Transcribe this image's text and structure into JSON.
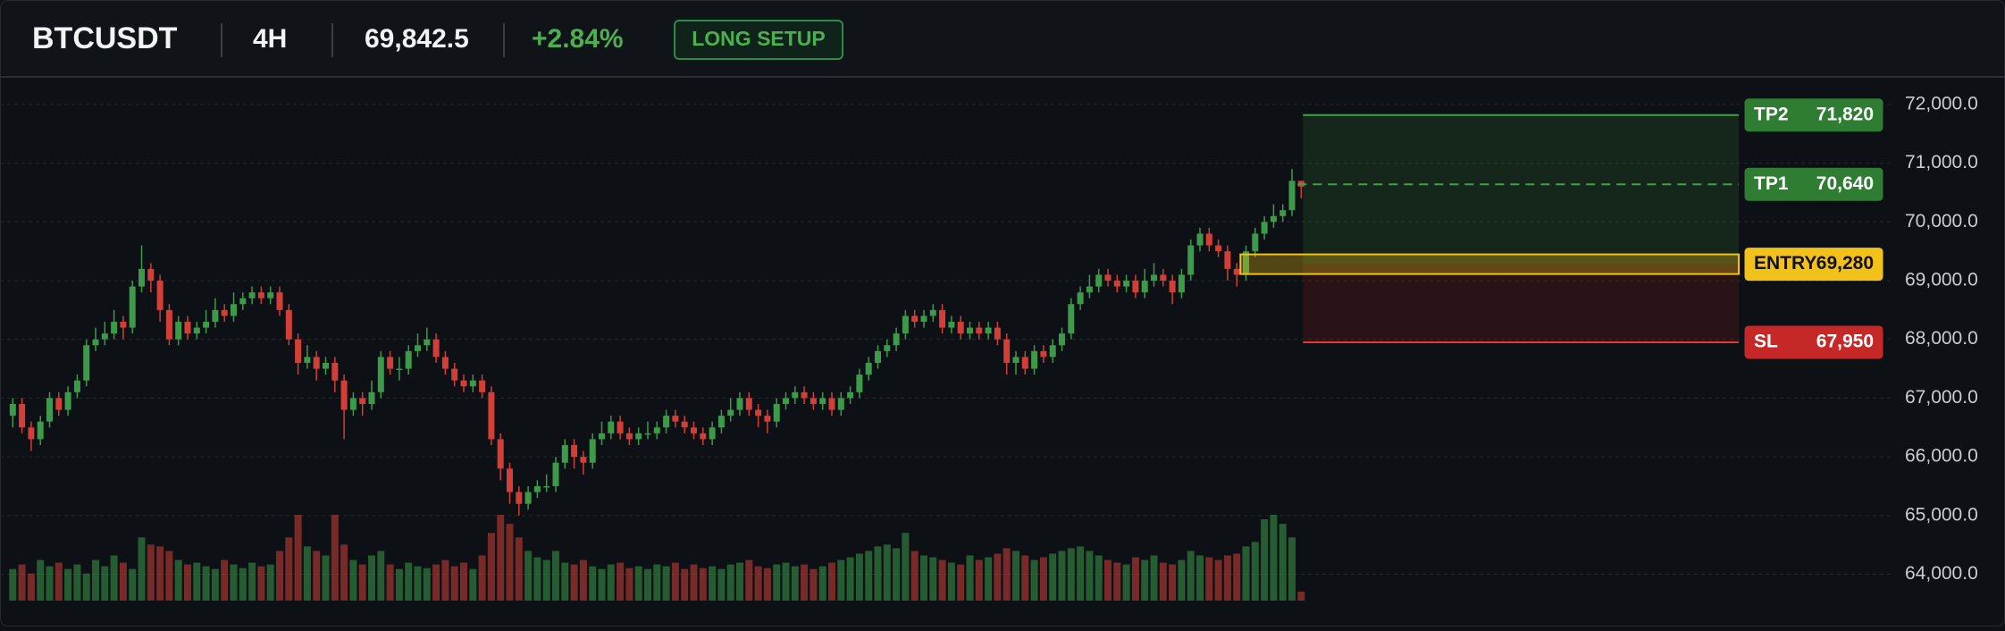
{
  "header": {
    "symbol": "BTCUSDT",
    "timeframe": "4H",
    "price": "69,842.5",
    "change": "+2.84%",
    "badge": "LONG SETUP"
  },
  "chart_data": {
    "type": "candlestick",
    "up_color": "#3c9a4a",
    "down_color": "#d13f38",
    "ylim": [
      63110,
      72470
    ],
    "yticks": [
      {
        "value": 72000,
        "label": "72,000.0"
      },
      {
        "value": 71000,
        "label": "71,000.0"
      },
      {
        "value": 70000,
        "label": "70,000.0"
      },
      {
        "value": 69000,
        "label": "69,000.0"
      },
      {
        "value": 68000,
        "label": "68,000.0"
      },
      {
        "value": 67000,
        "label": "67,000.0"
      },
      {
        "value": 66000,
        "label": "66,000.0"
      },
      {
        "value": 65000,
        "label": "65,000.0"
      },
      {
        "value": 64000,
        "label": "64,000.0"
      }
    ],
    "grid": true,
    "open": [
      66700,
      66900,
      66500,
      66300,
      66600,
      67000,
      66800,
      67100,
      67300,
      67900,
      68000,
      68100,
      68300,
      68200,
      68900,
      69200,
      69000,
      68500,
      68000,
      68300,
      68100,
      68200,
      68300,
      68500,
      68400,
      68600,
      68700,
      68800,
      68700,
      68800,
      68500,
      68000,
      67600,
      67700,
      67500,
      67600,
      67300,
      66800,
      67000,
      66900,
      67100,
      67700,
      67500,
      67500,
      67800,
      67900,
      68000,
      67700,
      67500,
      67300,
      67200,
      67300,
      67100,
      66300,
      65800,
      65400,
      65200,
      65400,
      65500,
      65500,
      65900,
      66200,
      66000,
      65900,
      66300,
      66400,
      66600,
      66400,
      66300,
      66400,
      66400,
      66500,
      66700,
      66600,
      66500,
      66400,
      66300,
      66500,
      66700,
      66800,
      67000,
      66800,
      66700,
      66600,
      66900,
      67000,
      67100,
      67000,
      66900,
      67000,
      66800,
      67000,
      67100,
      67400,
      67600,
      67800,
      67900,
      68100,
      68400,
      68300,
      68400,
      68500,
      68200,
      68300,
      68100,
      68200,
      68100,
      68200,
      68000,
      67600,
      67700,
      67500,
      67800,
      67700,
      67900,
      68100,
      68600,
      68800,
      68900,
      69100,
      69000,
      68900,
      69000,
      68800,
      69000,
      69100,
      69000,
      68800,
      69100,
      69600,
      69800,
      69600,
      69500,
      69200,
      69100,
      69500,
      69800,
      70000,
      70100,
      70200,
      70700
    ],
    "high": [
      67000,
      67000,
      66600,
      66700,
      67100,
      67100,
      67200,
      67400,
      68000,
      68200,
      68300,
      68500,
      68400,
      69000,
      69600,
      69300,
      69100,
      68600,
      68400,
      68400,
      68300,
      68500,
      68700,
      68600,
      68800,
      68800,
      68900,
      68900,
      68900,
      68900,
      68600,
      68100,
      67900,
      67800,
      67700,
      67700,
      67400,
      67100,
      67100,
      67300,
      67800,
      67800,
      67700,
      67900,
      68100,
      68200,
      68100,
      67800,
      67600,
      67400,
      67400,
      67400,
      67200,
      66400,
      65900,
      65500,
      65500,
      65600,
      65700,
      66000,
      66300,
      66300,
      66100,
      66400,
      66600,
      66700,
      66700,
      66500,
      66500,
      66600,
      66600,
      66800,
      66800,
      66700,
      66600,
      66500,
      66600,
      66800,
      67000,
      67100,
      67100,
      66900,
      66800,
      67000,
      67100,
      67200,
      67200,
      67100,
      67100,
      67100,
      67100,
      67200,
      67500,
      67700,
      67900,
      68000,
      68200,
      68500,
      68500,
      68500,
      68600,
      68600,
      68400,
      68400,
      68300,
      68300,
      68300,
      68300,
      68100,
      67800,
      67800,
      67900,
      67900,
      68000,
      68200,
      68700,
      68900,
      69100,
      69200,
      69200,
      69100,
      69100,
      69100,
      69200,
      69300,
      69200,
      69100,
      69200,
      69700,
      69900,
      69900,
      69700,
      69600,
      69300,
      69600,
      69900,
      70100,
      70300,
      70300,
      70900,
      70700
    ],
    "low": [
      66500,
      66400,
      66100,
      66200,
      66500,
      66700,
      66700,
      67000,
      67200,
      67800,
      67900,
      68000,
      68000,
      68100,
      68800,
      68800,
      68300,
      67900,
      67900,
      68000,
      68000,
      68100,
      68200,
      68300,
      68300,
      68500,
      68600,
      68600,
      68600,
      68400,
      67900,
      67400,
      67500,
      67300,
      67400,
      67100,
      66300,
      66700,
      66700,
      66800,
      67000,
      67400,
      67300,
      67400,
      67700,
      67800,
      67600,
      67400,
      67200,
      67100,
      67100,
      67000,
      66200,
      65600,
      65200,
      65000,
      65100,
      65300,
      65400,
      65400,
      65800,
      65800,
      65700,
      65800,
      66200,
      66300,
      66300,
      66200,
      66200,
      66300,
      66300,
      66400,
      66500,
      66400,
      66300,
      66200,
      66200,
      66400,
      66600,
      66700,
      66700,
      66500,
      66400,
      66500,
      66800,
      66900,
      66900,
      66800,
      66800,
      66700,
      66700,
      66900,
      67000,
      67300,
      67500,
      67700,
      67800,
      68000,
      68200,
      68200,
      68300,
      68100,
      68100,
      68000,
      68000,
      68000,
      68000,
      67900,
      67400,
      67400,
      67400,
      67400,
      67600,
      67600,
      67800,
      68000,
      68500,
      68700,
      68800,
      68900,
      68800,
      68800,
      68700,
      68700,
      68900,
      68900,
      68600,
      68700,
      69000,
      69500,
      69500,
      69400,
      69000,
      68900,
      69000,
      69400,
      69700,
      69900,
      70000,
      70100,
      70400
    ],
    "close": [
      66900,
      66500,
      66300,
      66600,
      67000,
      66800,
      67100,
      67300,
      67900,
      68000,
      68100,
      68300,
      68200,
      68900,
      69200,
      69000,
      68500,
      68000,
      68300,
      68100,
      68200,
      68300,
      68500,
      68400,
      68600,
      68700,
      68800,
      68700,
      68800,
      68500,
      68000,
      67600,
      67700,
      67500,
      67600,
      67300,
      66800,
      67000,
      66900,
      67100,
      67700,
      67500,
      67500,
      67800,
      67900,
      68000,
      67700,
      67500,
      67300,
      67200,
      67300,
      67100,
      66300,
      65800,
      65400,
      65200,
      65400,
      65500,
      65500,
      65900,
      66200,
      66000,
      65900,
      66300,
      66400,
      66600,
      66400,
      66300,
      66400,
      66400,
      66500,
      66700,
      66600,
      66500,
      66400,
      66300,
      66500,
      66700,
      66800,
      67000,
      66800,
      66700,
      66600,
      66900,
      67000,
      67100,
      67000,
      66900,
      67000,
      66800,
      67000,
      67100,
      67400,
      67600,
      67800,
      67900,
      68100,
      68400,
      68300,
      68400,
      68500,
      68200,
      68300,
      68100,
      68200,
      68100,
      68200,
      68000,
      67600,
      67700,
      67500,
      67800,
      67700,
      67900,
      68100,
      68600,
      68800,
      68900,
      69100,
      69000,
      68900,
      69000,
      68800,
      69000,
      69100,
      69000,
      68800,
      69100,
      69600,
      69800,
      69600,
      69500,
      69200,
      69100,
      69500,
      69800,
      70000,
      70100,
      70200,
      70700,
      70600
    ],
    "volume": [
      35,
      40,
      30,
      45,
      38,
      42,
      35,
      40,
      30,
      45,
      38,
      50,
      42,
      35,
      70,
      62,
      60,
      55,
      45,
      40,
      42,
      38,
      35,
      45,
      40,
      36,
      42,
      38,
      40,
      55,
      70,
      95,
      60,
      55,
      50,
      95,
      62,
      45,
      40,
      50,
      55,
      40,
      35,
      42,
      38,
      36,
      40,
      45,
      38,
      42,
      35,
      50,
      75,
      95,
      85,
      70,
      55,
      48,
      45,
      55,
      42,
      40,
      45,
      38,
      35,
      40,
      42,
      36,
      38,
      35,
      40,
      38,
      42,
      35,
      40,
      36,
      38,
      35,
      40,
      42,
      45,
      38,
      36,
      40,
      42,
      38,
      40,
      35,
      38,
      42,
      45,
      48,
      52,
      55,
      60,
      62,
      58,
      75,
      55,
      50,
      48,
      45,
      42,
      40,
      50,
      45,
      48,
      52,
      58,
      55,
      50,
      45,
      48,
      52,
      55,
      58,
      60,
      55,
      50,
      45,
      42,
      40,
      48,
      45,
      50,
      42,
      40,
      45,
      55,
      50,
      48,
      45,
      50,
      52,
      60,
      65,
      90,
      95,
      85,
      70,
      10
    ],
    "levels": [
      {
        "name": "TP2",
        "value": 71820,
        "value_label": "71,820",
        "color": "#2e7d32",
        "style": "solid"
      },
      {
        "name": "TP1",
        "value": 70640,
        "value_label": "70,640",
        "color": "#2e7d32",
        "style": "dashed"
      },
      {
        "name": "ENTRY",
        "value": 69280,
        "value_label": "69,280",
        "color": "#f2c21b",
        "style": "box"
      },
      {
        "name": "SL",
        "value": 67950,
        "value_label": "67,950",
        "color": "#c62828",
        "style": "solid"
      }
    ]
  }
}
